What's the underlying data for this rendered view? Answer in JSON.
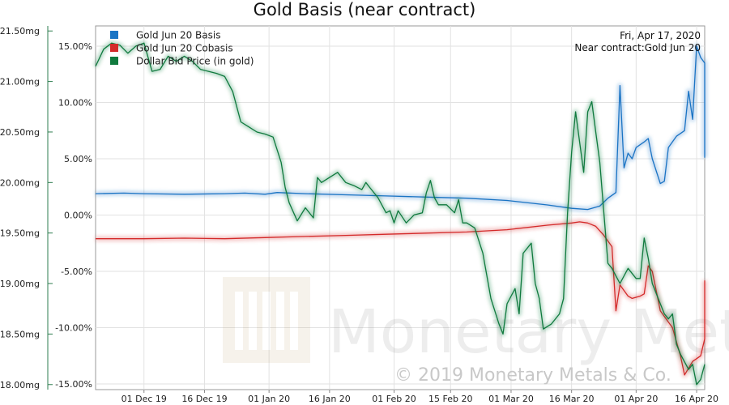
{
  "chart_data": {
    "type": "line",
    "title": "Gold Basis (near contract)",
    "annotation_date": "Fri, Apr 17, 2020",
    "annotation_contract": "Near contract:Gold Jun 20",
    "watermark_text": "Monetary Metals",
    "copyright": "© 2019 Monetary Metals & Co.",
    "grid": true,
    "legend_position": "top-left",
    "x_axis": {
      "range_days": [
        -12,
        139
      ],
      "ticks": [
        {
          "label": "01 Dec 19",
          "day": 0
        },
        {
          "label": "16 Dec 19",
          "day": 15
        },
        {
          "label": "01 Jan 20",
          "day": 31
        },
        {
          "label": "16 Jan 20",
          "day": 46
        },
        {
          "label": "01 Feb 20",
          "day": 62
        },
        {
          "label": "15 Feb 20",
          "day": 76
        },
        {
          "label": "01 Mar 20",
          "day": 91
        },
        {
          "label": "16 Mar 20",
          "day": 106
        },
        {
          "label": "01 Apr 20",
          "day": 122
        },
        {
          "label": "16 Apr 20",
          "day": 137
        }
      ]
    },
    "y_left": {
      "unit": "%",
      "range": [
        -15.5,
        16.8
      ],
      "ticks": [
        "15.00%",
        "10.00%",
        "5.00%",
        "0.00%",
        "-5.00%",
        "-10.00%",
        "-15.00%"
      ],
      "tick_values": [
        15,
        10,
        5,
        0,
        -5,
        -10,
        -15
      ]
    },
    "y_right": {
      "unit": "mg",
      "range": [
        17.95,
        21.55
      ],
      "ticks": [
        "21.50mg",
        "21.00mg",
        "20.50mg",
        "20.00mg",
        "19.50mg",
        "19.00mg",
        "18.50mg",
        "18.00mg"
      ],
      "tick_values": [
        21.5,
        21.0,
        20.5,
        20.0,
        19.5,
        19.0,
        18.5,
        18.0
      ],
      "side_drawn": "left"
    },
    "series": [
      {
        "name": "Gold Jun 20 Basis",
        "color": "#1a74c4",
        "axis": "percent",
        "points": [
          [
            -12,
            1.9
          ],
          [
            -5,
            1.95
          ],
          [
            0,
            1.9
          ],
          [
            10,
            1.85
          ],
          [
            20,
            1.9
          ],
          [
            25,
            1.95
          ],
          [
            30,
            1.85
          ],
          [
            33,
            2.0
          ],
          [
            40,
            1.9
          ],
          [
            50,
            1.8
          ],
          [
            60,
            1.7
          ],
          [
            70,
            1.6
          ],
          [
            80,
            1.5
          ],
          [
            90,
            1.3
          ],
          [
            100,
            0.9
          ],
          [
            106,
            0.6
          ],
          [
            110,
            0.5
          ],
          [
            113,
            0.8
          ],
          [
            115,
            1.5
          ],
          [
            117,
            2.0
          ],
          [
            118,
            11.5
          ],
          [
            119,
            4.2
          ],
          [
            120,
            5.5
          ],
          [
            121,
            5.0
          ],
          [
            122,
            6.0
          ],
          [
            124,
            6.5
          ],
          [
            125,
            6.8
          ],
          [
            126,
            5.0
          ],
          [
            128,
            2.8
          ],
          [
            129,
            3.0
          ],
          [
            130,
            6.0
          ],
          [
            132,
            7.0
          ],
          [
            134,
            7.5
          ],
          [
            135,
            11.0
          ],
          [
            136,
            8.5
          ],
          [
            137,
            15.0
          ],
          [
            138,
            14.0
          ],
          [
            139,
            13.5
          ],
          [
            140,
            13.0
          ],
          [
            141,
            10.0
          ],
          [
            142,
            7.0
          ],
          [
            143,
            5.3
          ],
          [
            145,
            5.1
          ]
        ]
      },
      {
        "name": "Gold Jun 20 Cobasis",
        "color": "#d42a2a",
        "axis": "percent",
        "points": [
          [
            -12,
            -2.1
          ],
          [
            0,
            -2.1
          ],
          [
            10,
            -2.05
          ],
          [
            20,
            -2.1
          ],
          [
            30,
            -2.0
          ],
          [
            40,
            -1.9
          ],
          [
            50,
            -1.8
          ],
          [
            60,
            -1.7
          ],
          [
            70,
            -1.6
          ],
          [
            80,
            -1.5
          ],
          [
            90,
            -1.3
          ],
          [
            100,
            -0.9
          ],
          [
            106,
            -0.7
          ],
          [
            108,
            -0.6
          ],
          [
            110,
            -0.7
          ],
          [
            112,
            -1.0
          ],
          [
            114,
            -1.8
          ],
          [
            116,
            -2.8
          ],
          [
            117,
            -8.5
          ],
          [
            118,
            -6.2
          ],
          [
            120,
            -7.2
          ],
          [
            121,
            -7.4
          ],
          [
            123,
            -7.2
          ],
          [
            124,
            -7.0
          ],
          [
            125,
            -4.5
          ],
          [
            126,
            -5.0
          ],
          [
            128,
            -8.5
          ],
          [
            130,
            -9.5
          ],
          [
            131,
            -10.0
          ],
          [
            133,
            -12.5
          ],
          [
            134,
            -14.2
          ],
          [
            136,
            -13.0
          ],
          [
            138,
            -12.5
          ],
          [
            139,
            -11.0
          ],
          [
            140,
            -10.0
          ],
          [
            142,
            -8.0
          ],
          [
            144,
            -5.8
          ]
        ]
      },
      {
        "name": "Dollar Bid Price (in gold)",
        "color": "#107a3e",
        "axis": "mg",
        "points": [
          [
            -12,
            21.15
          ],
          [
            -10,
            21.32
          ],
          [
            -8,
            21.38
          ],
          [
            -6,
            21.36
          ],
          [
            -4,
            21.28
          ],
          [
            -2,
            21.35
          ],
          [
            0,
            21.38
          ],
          [
            2,
            21.1
          ],
          [
            4,
            21.12
          ],
          [
            6,
            21.25
          ],
          [
            8,
            21.2
          ],
          [
            10,
            21.25
          ],
          [
            12,
            21.2
          ],
          [
            14,
            21.12
          ],
          [
            16,
            21.1
          ],
          [
            18,
            21.08
          ],
          [
            20,
            21.05
          ],
          [
            22,
            20.9
          ],
          [
            24,
            20.6
          ],
          [
            26,
            20.55
          ],
          [
            28,
            20.5
          ],
          [
            30,
            20.48
          ],
          [
            32,
            20.45
          ],
          [
            34,
            20.2
          ],
          [
            35,
            19.95
          ],
          [
            36,
            19.8
          ],
          [
            38,
            19.62
          ],
          [
            40,
            19.75
          ],
          [
            42,
            19.65
          ],
          [
            43,
            20.05
          ],
          [
            44,
            20.0
          ],
          [
            46,
            20.05
          ],
          [
            48,
            20.1
          ],
          [
            50,
            20.0
          ],
          [
            52,
            19.97
          ],
          [
            54,
            19.93
          ],
          [
            55,
            20.0
          ],
          [
            56,
            19.95
          ],
          [
            58,
            19.85
          ],
          [
            60,
            19.7
          ],
          [
            61,
            19.72
          ],
          [
            62,
            19.6
          ],
          [
            63,
            19.72
          ],
          [
            65,
            19.6
          ],
          [
            67,
            19.68
          ],
          [
            69,
            19.7
          ],
          [
            70,
            19.9
          ],
          [
            71,
            20.02
          ],
          [
            72,
            19.85
          ],
          [
            73,
            19.78
          ],
          [
            75,
            19.78
          ],
          [
            77,
            19.7
          ],
          [
            78,
            19.83
          ],
          [
            79,
            19.6
          ],
          [
            80,
            19.6
          ],
          [
            82,
            19.55
          ],
          [
            84,
            19.3
          ],
          [
            86,
            18.85
          ],
          [
            88,
            18.6
          ],
          [
            89,
            18.5
          ],
          [
            90,
            18.8
          ],
          [
            92,
            18.95
          ],
          [
            93,
            18.7
          ],
          [
            94,
            19.3
          ],
          [
            96,
            19.4
          ],
          [
            97,
            19.0
          ],
          [
            98,
            18.85
          ],
          [
            99,
            18.55
          ],
          [
            101,
            18.6
          ],
          [
            103,
            18.7
          ],
          [
            104,
            18.85
          ],
          [
            105,
            19.7
          ],
          [
            106,
            20.3
          ],
          [
            107,
            20.7
          ],
          [
            108,
            20.4
          ],
          [
            109,
            20.1
          ],
          [
            110,
            20.7
          ],
          [
            111,
            20.8
          ],
          [
            112,
            20.5
          ],
          [
            113,
            20.2
          ],
          [
            114,
            19.7
          ],
          [
            115,
            19.2
          ],
          [
            116,
            19.15
          ],
          [
            118,
            19.0
          ],
          [
            120,
            19.15
          ],
          [
            122,
            19.05
          ],
          [
            123,
            19.05
          ],
          [
            124,
            19.45
          ],
          [
            125,
            19.25
          ],
          [
            126,
            19.0
          ],
          [
            128,
            18.8
          ],
          [
            129,
            18.7
          ],
          [
            130,
            18.65
          ],
          [
            131,
            18.7
          ],
          [
            132,
            18.4
          ],
          [
            133,
            18.3
          ],
          [
            135,
            18.15
          ],
          [
            136,
            18.2
          ],
          [
            137,
            18.0
          ],
          [
            138,
            18.05
          ],
          [
            139,
            18.2
          ]
        ]
      }
    ]
  }
}
